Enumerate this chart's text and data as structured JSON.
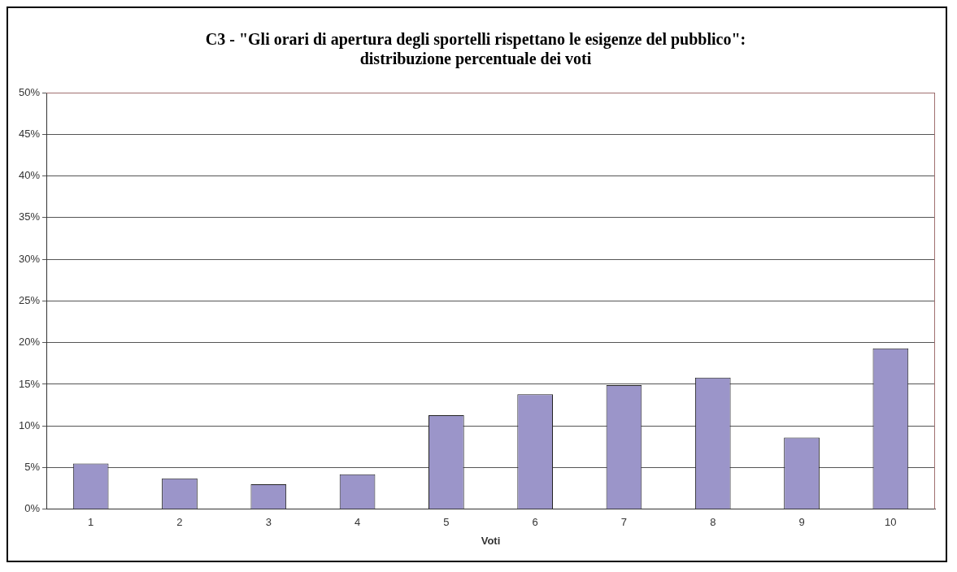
{
  "chart_data": {
    "type": "bar",
    "title": [
      "C3 - \"Gli orari di apertura degli sportelli rispettano le esigenze del pubblico\":",
      "distribuzione percentuale dei voti"
    ],
    "xlabel": "Voti",
    "categories": [
      "1",
      "2",
      "3",
      "4",
      "5",
      "6",
      "7",
      "8",
      "9",
      "10"
    ],
    "values": [
      5.5,
      3.7,
      3.0,
      4.2,
      11.3,
      13.8,
      14.9,
      15.8,
      8.6,
      19.3
    ],
    "color": "#9b95c9",
    "ylim": [
      0,
      50
    ],
    "yticks": [
      {
        "value": 0,
        "label": "0%"
      },
      {
        "value": 5,
        "label": "5%"
      },
      {
        "value": 10,
        "label": "10%"
      },
      {
        "value": 15,
        "label": "15%"
      },
      {
        "value": 20,
        "label": "20%"
      },
      {
        "value": 25,
        "label": "25%"
      },
      {
        "value": 30,
        "label": "30%"
      },
      {
        "value": 35,
        "label": "35%"
      },
      {
        "value": 40,
        "label": "40%"
      },
      {
        "value": 45,
        "label": "45%"
      },
      {
        "value": 50,
        "label": "50%"
      }
    ],
    "grid": "y",
    "legend": false
  }
}
